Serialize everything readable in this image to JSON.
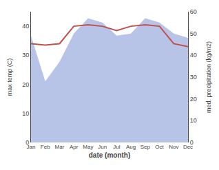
{
  "chart_data": {
    "type": "line",
    "xlabel": "date (month)",
    "ylabel": "max temp (C)",
    "y2label": "med. precipitation (kg/m2)",
    "categories": [
      "Jan",
      "Feb",
      "Mar",
      "Apr",
      "May",
      "Jun",
      "Jul",
      "Aug",
      "Sep",
      "Oct",
      "Nov",
      "Dec"
    ],
    "series": [
      {
        "type": "area",
        "axis": "y2",
        "color": "#b8c3e8",
        "values": [
          49,
          28,
          37,
          50,
          57,
          55,
          49,
          50,
          57,
          55,
          50,
          48
        ]
      },
      {
        "type": "line",
        "color": "#c0504d",
        "values": [
          34,
          33.5,
          34,
          40,
          40.5,
          40,
          38.5,
          40,
          40.5,
          40,
          34,
          33
        ]
      }
    ],
    "ylim": [
      0,
      45
    ],
    "yticks": [
      0,
      10,
      20,
      30,
      40
    ],
    "y2lim": [
      0,
      60
    ],
    "y2ticks": [
      0,
      10,
      20,
      30,
      40,
      50,
      60
    ],
    "grid": false
  }
}
